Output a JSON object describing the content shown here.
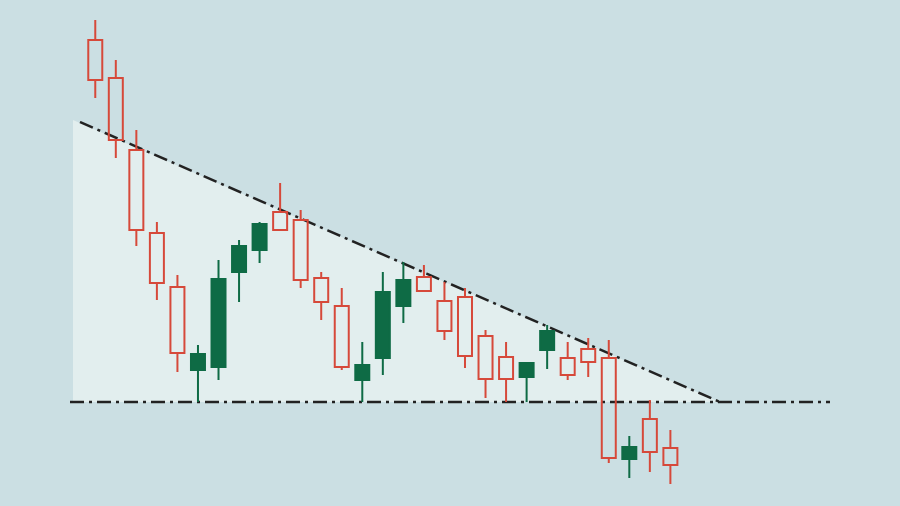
{
  "chart_data": {
    "type": "candlestick",
    "categories": [
      null,
      null,
      null,
      null,
      null,
      null,
      null,
      null,
      null,
      null,
      null,
      null,
      null,
      null,
      null,
      null,
      null,
      null,
      null,
      null,
      null,
      null,
      null,
      null,
      null,
      null,
      null,
      null,
      null
    ],
    "open": [
      466,
      428,
      356,
      273,
      219,
      136,
      139,
      234,
      256,
      294,
      286,
      228,
      200,
      126,
      148,
      200,
      229,
      205,
      209,
      170,
      149,
      129,
      156,
      148,
      157,
      148,
      47,
      87,
      58
    ],
    "close": [
      426,
      366,
      276,
      223,
      153,
      152,
      227,
      260,
      282,
      276,
      226,
      204,
      139,
      141,
      214,
      226,
      215,
      175,
      150,
      127,
      127,
      143,
      175,
      131,
      144,
      48,
      59,
      54,
      41
    ],
    "high": [
      486,
      446,
      376,
      284,
      231,
      161,
      246,
      266,
      284,
      323,
      296,
      234,
      218,
      164,
      234,
      244,
      241,
      224,
      218,
      176,
      164,
      144,
      181,
      164,
      168,
      166,
      70,
      106,
      76
    ],
    "low": [
      408,
      348,
      260,
      206,
      134,
      104,
      126,
      204,
      243,
      276,
      218,
      186,
      136,
      104,
      131,
      183,
      214,
      166,
      138,
      108,
      104,
      104,
      137,
      126,
      129,
      43,
      28,
      34,
      22
    ],
    "up_color": "#0e6b45",
    "down_color": "#d6493a",
    "ylim": [
      0,
      506
    ]
  }
}
